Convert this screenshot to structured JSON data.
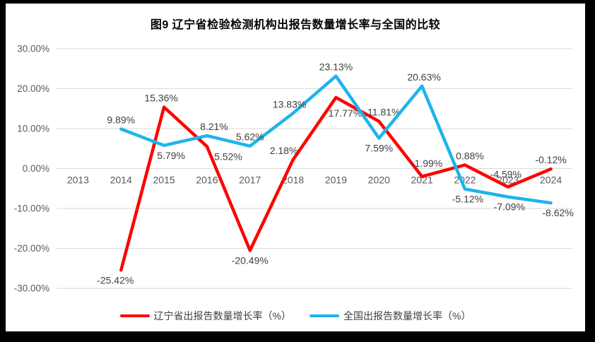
{
  "window": {
    "frame_color": "#000000",
    "canvas_color": "#FFFFFF"
  },
  "chart": {
    "title": "图9  辽宁省检验检测机构出报告数量增长率与全国的比较"
  },
  "legend": [
    {
      "label": "辽宁省出报告数量增长率（%）",
      "color": "#FF0000"
    },
    {
      "label": "全国出报告数量增长率（%）",
      "color": "#1EB4EB"
    }
  ],
  "chart_data": {
    "type": "line",
    "title": "图9  辽宁省检验检测机构出报告数量增长率与全国的比较",
    "categories": [
      "2013",
      "2014",
      "2015",
      "2016",
      "2017",
      "2018",
      "2019",
      "2020",
      "2021",
      "2022",
      "2023",
      "2024"
    ],
    "series": [
      {
        "name": "辽宁省出报告数量增长率（%）",
        "color": "#FF0000",
        "values": [
          null,
          -25.42,
          15.36,
          5.52,
          -20.49,
          2.18,
          17.77,
          11.81,
          -1.99,
          0.88,
          -4.59,
          -0.12
        ],
        "labels": [
          null,
          "-25.42%",
          "15.36%",
          "5.52%",
          "-20.49%",
          "2.18%",
          "17.77%",
          "11.81%",
          "-1.99%",
          "0.88%",
          "-4.59%",
          "-0.12%"
        ],
        "label_pos": [
          null,
          "below",
          "above",
          "below",
          "below",
          "above",
          "below",
          "above",
          "above",
          "above",
          "above",
          "above"
        ],
        "label_dx": [
          0,
          -8,
          -4,
          30,
          0,
          -13,
          13,
          7,
          7,
          7,
          -3,
          0
        ],
        "label_dy": [
          0,
          0,
          0,
          0,
          0,
          0,
          8,
          0,
          -6,
          0,
          -5,
          0
        ]
      },
      {
        "name": "全国出报告数量增长率（%）",
        "color": "#1EB4EB",
        "values": [
          null,
          9.89,
          5.79,
          8.21,
          5.62,
          13.83,
          23.13,
          7.59,
          20.63,
          -5.12,
          -7.09,
          -8.62
        ],
        "labels": [
          null,
          "9.89%",
          "5.79%",
          "8.21%",
          "5.62%",
          "13.83%",
          "23.13%",
          "7.59%",
          "20.63%",
          "-5.12%",
          "-7.09%",
          "-8.62%"
        ],
        "label_pos": [
          null,
          "above",
          "below",
          "above",
          "above",
          "above",
          "above",
          "below",
          "above",
          "below",
          "below",
          "below"
        ],
        "label_dx": [
          0,
          0,
          10,
          10,
          0,
          -5,
          0,
          0,
          3,
          4,
          2,
          10
        ],
        "label_dy": [
          0,
          0,
          0,
          0,
          0,
          0,
          0,
          0,
          0,
          0,
          0,
          0
        ]
      }
    ],
    "y_axis": {
      "min": -30,
      "max": 30,
      "step": 10,
      "ticks": [
        {
          "value": 30,
          "label": "30.00%"
        },
        {
          "value": 20,
          "label": "20.00%"
        },
        {
          "value": 10,
          "label": "10.00%"
        },
        {
          "value": 0,
          "label": "0.00%"
        },
        {
          "value": -10,
          "label": "-10.00%"
        },
        {
          "value": -20,
          "label": "-20.00%"
        },
        {
          "value": -30,
          "label": "-30.00%"
        }
      ]
    },
    "grid": true,
    "gridline_color": "#D9D9D9",
    "axis_label_color": "#595959",
    "data_label_color": "#404040",
    "legend_position": "bottom"
  }
}
